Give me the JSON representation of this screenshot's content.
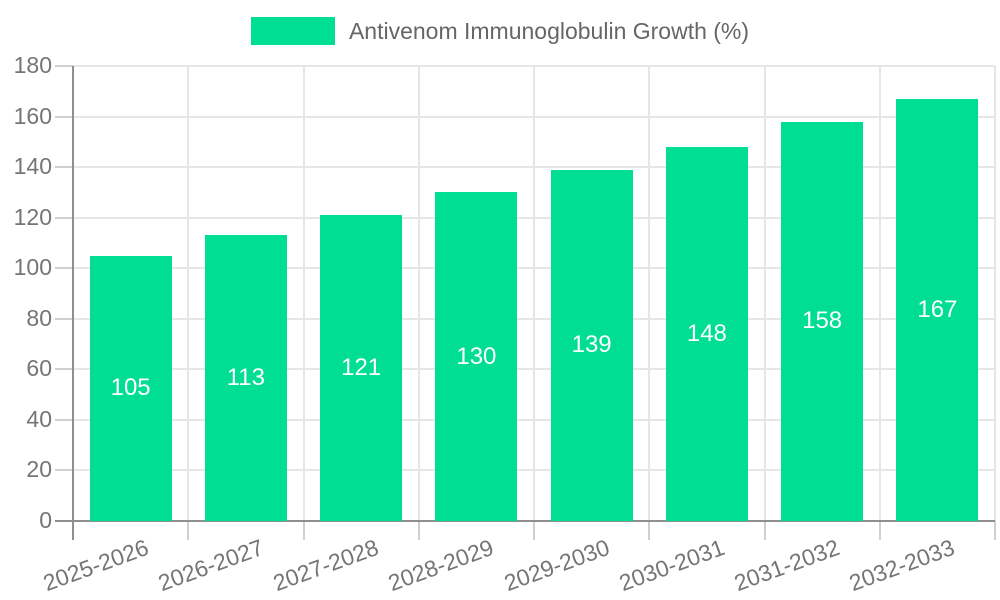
{
  "chart_data": {
    "type": "bar",
    "title": "",
    "legend_label": "Antivenom Immunoglobulin Growth (%)",
    "legend_position": "top-center",
    "categories": [
      "2025-2026",
      "2026-2027",
      "2027-2028",
      "2028-2029",
      "2029-2030",
      "2030-2031",
      "2031-2032",
      "2032-2033"
    ],
    "values": [
      105,
      113,
      121,
      130,
      139,
      148,
      158,
      167
    ],
    "yticks": [
      0,
      20,
      40,
      60,
      80,
      100,
      120,
      140,
      160,
      180
    ],
    "ylim": [
      0,
      180
    ],
    "xlabel": "",
    "ylabel": "",
    "grid": true,
    "x_label_rotation_deg": -20,
    "colors": {
      "bar": "#00DE94",
      "value_label": "#ffffff",
      "axis": "#8f8f8f",
      "tick": "#cfcfcf",
      "gridline": "#e6e6e6",
      "tick_label": "#757575",
      "legend_text": "#666666",
      "background": "#ffffff"
    }
  }
}
